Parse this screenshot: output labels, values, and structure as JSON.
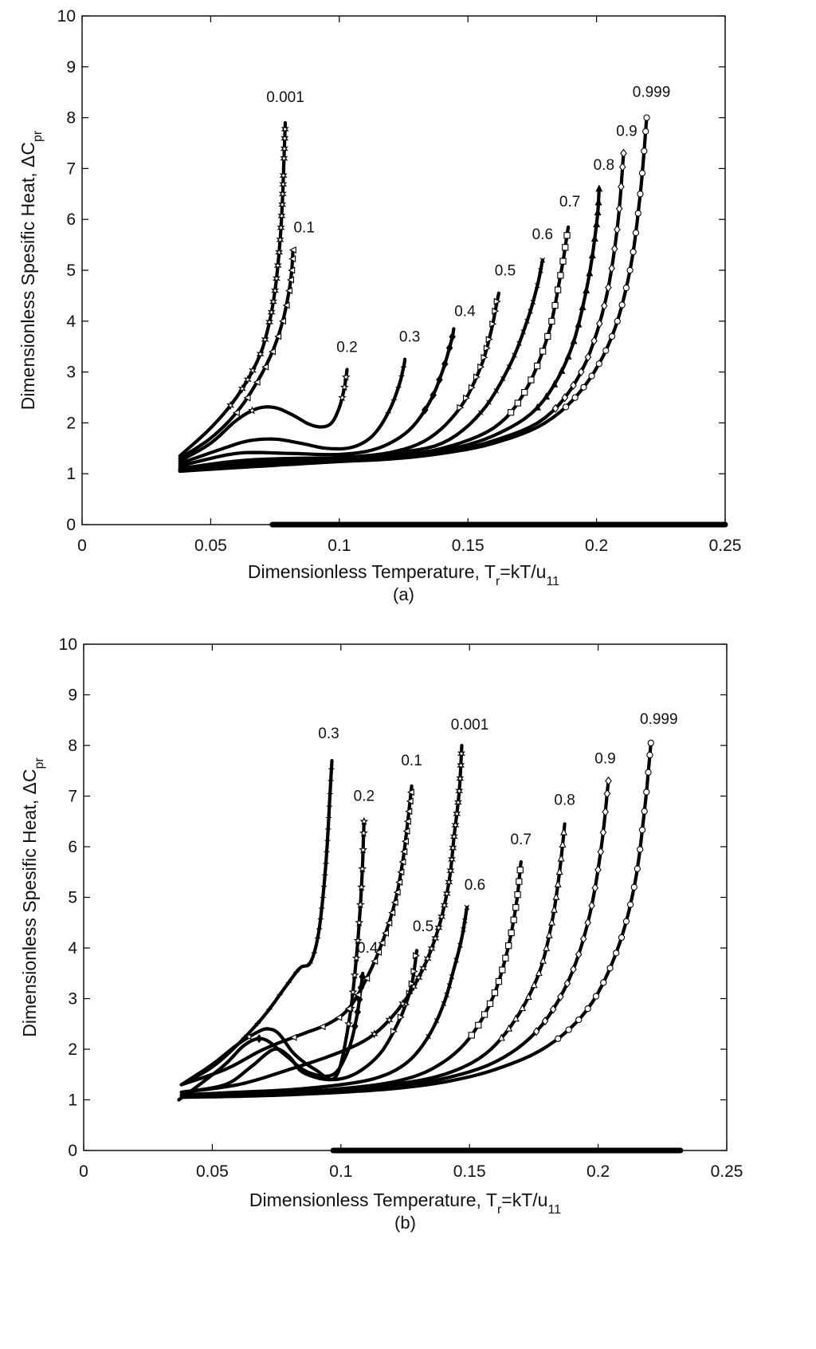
{
  "chart_data": [
    {
      "type": "scatter",
      "panel_label": "(a)",
      "xlabel": "Dimensionless Temperature, T_r=kT/u_11",
      "xlabel_parts": [
        "Dimensionless Temperature, T",
        "r",
        "=kT/u",
        "11"
      ],
      "ylabel": "Dimensionless Spesific Heat, ΔC_pr",
      "ylabel_parts": [
        "Dimensionless Spesific Heat, ΔC",
        "pr"
      ],
      "xlim": [
        0,
        0.25
      ],
      "ylim": [
        0,
        10
      ],
      "xticks": [
        0,
        0.05,
        0.1,
        0.15,
        0.2,
        0.25
      ],
      "xtick_labels": [
        "0",
        "0.05",
        "0.1",
        "0.15",
        "0.2",
        "0.25"
      ],
      "yticks": [
        0,
        1,
        2,
        3,
        4,
        5,
        6,
        7,
        8,
        9,
        10
      ],
      "ytick_labels": [
        "0",
        "1",
        "2",
        "3",
        "4",
        "5",
        "6",
        "7",
        "8",
        "9",
        "10"
      ],
      "zero_line_range": [
        0.074,
        0.25
      ],
      "series": [
        {
          "name": "0.001",
          "marker": "star6",
          "x": [
            0.038,
            0.05,
            0.06,
            0.068,
            0.072,
            0.075,
            0.077,
            0.078,
            0.0785,
            0.079
          ],
          "y": [
            1.35,
            1.9,
            2.5,
            3.2,
            3.8,
            4.6,
            5.6,
            6.5,
            7.2,
            7.9
          ]
        },
        {
          "name": "0.1",
          "marker": "tri-left",
          "x": [
            0.038,
            0.05,
            0.06,
            0.068,
            0.074,
            0.078,
            0.0805,
            0.0815,
            0.082
          ],
          "y": [
            1.3,
            1.7,
            2.2,
            2.8,
            3.4,
            4.0,
            4.6,
            5.0,
            5.4
          ]
        },
        {
          "name": "0.2",
          "marker": "star5",
          "x": [
            0.038,
            0.05,
            0.06,
            0.068,
            0.075,
            0.082,
            0.088,
            0.093,
            0.097,
            0.1,
            0.102,
            0.103
          ],
          "y": [
            1.25,
            1.6,
            2.05,
            2.28,
            2.3,
            2.15,
            1.98,
            1.92,
            2.0,
            2.3,
            2.7,
            3.05
          ]
        },
        {
          "name": "0.3",
          "marker": "plus",
          "x": [
            0.038,
            0.055,
            0.065,
            0.075,
            0.085,
            0.095,
            0.105,
            0.113,
            0.119,
            0.123,
            0.125,
            0.1255
          ],
          "y": [
            1.2,
            1.5,
            1.65,
            1.68,
            1.6,
            1.5,
            1.52,
            1.75,
            2.2,
            2.7,
            3.1,
            3.25
          ]
        },
        {
          "name": "0.4",
          "marker": "diamond-filled",
          "x": [
            0.038,
            0.06,
            0.08,
            0.1,
            0.115,
            0.127,
            0.135,
            0.14,
            0.1435,
            0.1445
          ],
          "y": [
            1.15,
            1.4,
            1.4,
            1.38,
            1.5,
            1.85,
            2.4,
            3.0,
            3.6,
            3.85
          ]
        },
        {
          "name": "0.5",
          "marker": "tri-right",
          "x": [
            0.038,
            0.06,
            0.08,
            0.1,
            0.12,
            0.135,
            0.147,
            0.155,
            0.159,
            0.161,
            0.162
          ],
          "y": [
            1.1,
            1.25,
            1.3,
            1.32,
            1.42,
            1.7,
            2.3,
            3.1,
            3.8,
            4.3,
            4.55
          ]
        },
        {
          "name": "0.6",
          "marker": "cross",
          "x": [
            0.038,
            0.06,
            0.08,
            0.1,
            0.12,
            0.14,
            0.155,
            0.166,
            0.173,
            0.177,
            0.179
          ],
          "y": [
            1.1,
            1.2,
            1.25,
            1.3,
            1.4,
            1.6,
            2.2,
            3.1,
            4.0,
            4.7,
            5.2
          ]
        },
        {
          "name": "0.7",
          "marker": "square",
          "x": [
            0.038,
            0.06,
            0.08,
            0.1,
            0.12,
            0.14,
            0.16,
            0.172,
            0.181,
            0.186,
            0.189
          ],
          "y": [
            1.08,
            1.18,
            1.24,
            1.28,
            1.35,
            1.5,
            1.9,
            2.6,
            3.7,
            4.9,
            5.85
          ]
        },
        {
          "name": "0.8",
          "marker": "tri-up-filled",
          "x": [
            0.038,
            0.06,
            0.08,
            0.1,
            0.12,
            0.14,
            0.16,
            0.177,
            0.189,
            0.196,
            0.2,
            0.201
          ],
          "y": [
            1.06,
            1.15,
            1.22,
            1.26,
            1.32,
            1.45,
            1.75,
            2.3,
            3.3,
            4.6,
            5.9,
            6.6
          ]
        },
        {
          "name": "0.9",
          "marker": "diamond",
          "x": [
            0.038,
            0.06,
            0.08,
            0.1,
            0.12,
            0.14,
            0.16,
            0.18,
            0.194,
            0.203,
            0.208,
            0.2105
          ],
          "y": [
            1.05,
            1.13,
            1.2,
            1.25,
            1.3,
            1.42,
            1.65,
            2.1,
            3.0,
            4.3,
            5.8,
            7.3
          ]
        },
        {
          "name": "0.999",
          "marker": "circle",
          "x": [
            0.038,
            0.06,
            0.08,
            0.1,
            0.12,
            0.14,
            0.16,
            0.18,
            0.195,
            0.206,
            0.213,
            0.217,
            0.2195
          ],
          "y": [
            1.05,
            1.12,
            1.18,
            1.24,
            1.29,
            1.4,
            1.6,
            2.0,
            2.7,
            3.7,
            5.0,
            6.5,
            8.0
          ]
        }
      ]
    },
    {
      "type": "scatter",
      "panel_label": "(b)",
      "xlabel": "Dimensionless Temperature, T_r=kT/u_11",
      "xlabel_parts": [
        "Dimensionless Temperature, T",
        "r",
        "=kT/u",
        "11"
      ],
      "ylabel": "Dimensionless Spesific Heat, ΔC_pr",
      "ylabel_parts": [
        "Dimensionless Spesific Heat, ΔC",
        "pr"
      ],
      "xlim": [
        0,
        0.25
      ],
      "ylim": [
        0,
        10
      ],
      "xticks": [
        0,
        0.05,
        0.1,
        0.15,
        0.2,
        0.25
      ],
      "xtick_labels": [
        "0",
        "0.05",
        "0.1",
        "0.15",
        "0.2",
        "0.25"
      ],
      "yticks": [
        0,
        1,
        2,
        3,
        4,
        5,
        6,
        7,
        8,
        9,
        10
      ],
      "ytick_labels": [
        "0",
        "1",
        "2",
        "3",
        "4",
        "5",
        "6",
        "7",
        "8",
        "9",
        "10"
      ],
      "zero_line_range": [
        0.097,
        0.232
      ],
      "series": [
        {
          "name": "0.3",
          "marker": "plus",
          "x": [
            0.038,
            0.05,
            0.06,
            0.07,
            0.078,
            0.084,
            0.088,
            0.091,
            0.093,
            0.0945,
            0.0955,
            0.0965
          ],
          "y": [
            1.3,
            1.65,
            2.1,
            2.65,
            3.2,
            3.6,
            3.7,
            4.2,
            5.0,
            5.9,
            6.8,
            7.7
          ]
        },
        {
          "name": "0.2",
          "marker": "star5",
          "x": [
            0.038,
            0.05,
            0.06,
            0.068,
            0.072,
            0.076,
            0.082,
            0.09,
            0.098,
            0.103,
            0.106,
            0.108,
            0.109
          ],
          "y": [
            1.3,
            1.7,
            2.1,
            2.35,
            2.4,
            2.3,
            1.9,
            1.6,
            1.45,
            2.5,
            3.8,
            5.2,
            6.5
          ]
        },
        {
          "name": "0.4",
          "marker": "diamond-filled",
          "x": [
            0.037,
            0.045,
            0.055,
            0.063,
            0.07,
            0.078,
            0.087,
            0.097,
            0.103,
            0.106,
            0.1075,
            0.1085
          ],
          "y": [
            1.0,
            1.3,
            1.7,
            2.1,
            2.2,
            1.9,
            1.55,
            1.5,
            2.0,
            2.6,
            3.1,
            3.5
          ]
        },
        {
          "name": "0.1",
          "marker": "tri-left",
          "x": [
            0.038,
            0.055,
            0.07,
            0.085,
            0.095,
            0.103,
            0.11,
            0.116,
            0.121,
            0.124,
            0.126,
            0.1275
          ],
          "y": [
            1.3,
            1.6,
            2.0,
            2.3,
            2.5,
            2.8,
            3.4,
            4.1,
            4.9,
            5.7,
            6.5,
            7.2
          ]
        },
        {
          "name": "0.5",
          "marker": "tri-right",
          "x": [
            0.038,
            0.055,
            0.065,
            0.074,
            0.08,
            0.085,
            0.095,
            0.105,
            0.115,
            0.122,
            0.126,
            0.128,
            0.1295
          ],
          "y": [
            1.15,
            1.3,
            1.65,
            2.0,
            1.85,
            1.55,
            1.4,
            1.5,
            1.9,
            2.5,
            3.0,
            3.4,
            3.95
          ]
        },
        {
          "name": "0.001",
          "marker": "star6",
          "x": [
            0.038,
            0.06,
            0.08,
            0.1,
            0.113,
            0.124,
            0.132,
            0.138,
            0.142,
            0.144,
            0.146,
            0.147
          ],
          "y": [
            1.15,
            1.3,
            1.6,
            1.95,
            2.3,
            2.9,
            3.6,
            4.4,
            5.3,
            6.2,
            7.1,
            8.0
          ]
        },
        {
          "name": "0.6",
          "marker": "cross",
          "x": [
            0.038,
            0.06,
            0.08,
            0.1,
            0.115,
            0.126,
            0.134,
            0.14,
            0.144,
            0.147,
            0.149
          ],
          "y": [
            1.1,
            1.15,
            1.2,
            1.3,
            1.45,
            1.75,
            2.25,
            2.9,
            3.6,
            4.2,
            4.8
          ]
        },
        {
          "name": "0.7",
          "marker": "square",
          "x": [
            0.038,
            0.06,
            0.08,
            0.1,
            0.12,
            0.135,
            0.148,
            0.158,
            0.164,
            0.168,
            0.17
          ],
          "y": [
            1.08,
            1.12,
            1.15,
            1.22,
            1.35,
            1.6,
            2.1,
            2.9,
            3.8,
            4.8,
            5.7
          ]
        },
        {
          "name": "0.8",
          "marker": "tri-up",
          "x": [
            0.038,
            0.06,
            0.08,
            0.1,
            0.12,
            0.14,
            0.156,
            0.168,
            0.177,
            0.182,
            0.185,
            0.187
          ],
          "y": [
            1.07,
            1.1,
            1.13,
            1.2,
            1.3,
            1.5,
            1.9,
            2.6,
            3.5,
            4.5,
            5.5,
            6.45
          ]
        },
        {
          "name": "0.9",
          "marker": "diamond",
          "x": [
            0.038,
            0.06,
            0.08,
            0.1,
            0.12,
            0.14,
            0.16,
            0.176,
            0.188,
            0.196,
            0.201,
            0.204
          ],
          "y": [
            1.06,
            1.08,
            1.12,
            1.18,
            1.26,
            1.42,
            1.75,
            2.35,
            3.3,
            4.5,
            5.9,
            7.3
          ]
        },
        {
          "name": "0.999",
          "marker": "circle",
          "x": [
            0.038,
            0.06,
            0.08,
            0.1,
            0.12,
            0.14,
            0.16,
            0.18,
            0.196,
            0.207,
            0.214,
            0.218,
            0.2205
          ],
          "y": [
            1.05,
            1.07,
            1.1,
            1.15,
            1.22,
            1.35,
            1.6,
            2.05,
            2.8,
            3.9,
            5.2,
            6.7,
            8.05
          ]
        }
      ]
    }
  ]
}
